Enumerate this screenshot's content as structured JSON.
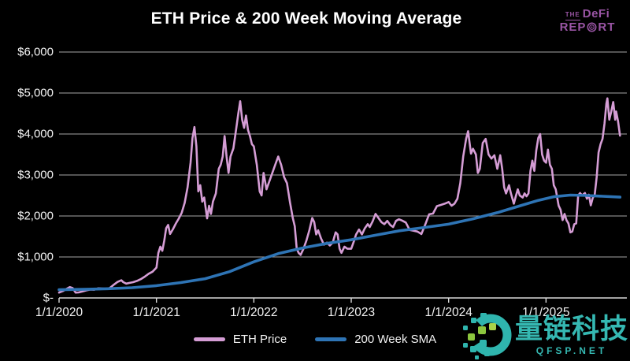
{
  "colors": {
    "background": "#000000",
    "text": "#ffffff",
    "gridline": "#a6a6a6",
    "axis": "#d9d9d9",
    "eth_pink": "#d59dd5",
    "sma_blue": "#2e74b5",
    "logo_purple": "#9a55a5",
    "watermark_teal": "#35b8b2",
    "watermark_green": "#8cc63e"
  },
  "logo": {
    "the": "THE",
    "defi": "DeFi",
    "rep": "REP",
    "rt": "RT"
  },
  "watermark": {
    "text": "量链科技",
    "subtext": "QFSP.NET"
  },
  "chart_data": {
    "type": "line",
    "title": "ETH Price & 200 Week Moving Average",
    "xlabel": "",
    "ylabel": "",
    "grid": "horizontal",
    "legend_position": "bottom",
    "x_axis": {
      "range": [
        2020.0,
        2025.83
      ],
      "ticks": [
        {
          "t": 2020,
          "label": "1/1/2020"
        },
        {
          "t": 2021,
          "label": "1/1/2021"
        },
        {
          "t": 2022,
          "label": "1/1/2022"
        },
        {
          "t": 2023,
          "label": "1/1/2023"
        },
        {
          "t": 2024,
          "label": "1/1/2024"
        },
        {
          "t": 2025,
          "label": "1/1/2025"
        }
      ]
    },
    "y_axis": {
      "range": [
        0,
        6000
      ],
      "ticks": [
        {
          "value": 6000,
          "label": "$6,000"
        },
        {
          "value": 5000,
          "label": "$5,000"
        },
        {
          "value": 4000,
          "label": "$4,000"
        },
        {
          "value": 3000,
          "label": "$3,000"
        },
        {
          "value": 2000,
          "label": "$2,000"
        },
        {
          "value": 1000,
          "label": "$1,000"
        },
        {
          "value": 0,
          "label": "$-"
        }
      ]
    },
    "series": [
      {
        "name": "ETH Price",
        "color": "#d59dd5",
        "stroke_width": 2.6,
        "points": [
          [
            2020.0,
            130
          ],
          [
            2020.04,
            170
          ],
          [
            2020.08,
            225
          ],
          [
            2020.11,
            265
          ],
          [
            2020.14,
            240
          ],
          [
            2020.17,
            130
          ],
          [
            2020.2,
            135
          ],
          [
            2020.24,
            160
          ],
          [
            2020.28,
            185
          ],
          [
            2020.32,
            205
          ],
          [
            2020.36,
            200
          ],
          [
            2020.4,
            235
          ],
          [
            2020.44,
            230
          ],
          [
            2020.48,
            225
          ],
          [
            2020.52,
            240
          ],
          [
            2020.56,
            320
          ],
          [
            2020.6,
            390
          ],
          [
            2020.64,
            430
          ],
          [
            2020.66,
            385
          ],
          [
            2020.69,
            350
          ],
          [
            2020.72,
            365
          ],
          [
            2020.76,
            385
          ],
          [
            2020.8,
            415
          ],
          [
            2020.84,
            460
          ],
          [
            2020.88,
            520
          ],
          [
            2020.92,
            590
          ],
          [
            2020.96,
            640
          ],
          [
            2021.0,
            740
          ],
          [
            2021.02,
            1100
          ],
          [
            2021.04,
            1250
          ],
          [
            2021.06,
            1150
          ],
          [
            2021.08,
            1400
          ],
          [
            2021.1,
            1700
          ],
          [
            2021.12,
            1780
          ],
          [
            2021.14,
            1560
          ],
          [
            2021.17,
            1680
          ],
          [
            2021.2,
            1820
          ],
          [
            2021.23,
            1940
          ],
          [
            2021.26,
            2080
          ],
          [
            2021.29,
            2320
          ],
          [
            2021.32,
            2700
          ],
          [
            2021.35,
            3300
          ],
          [
            2021.37,
            3900
          ],
          [
            2021.39,
            4170
          ],
          [
            2021.41,
            3700
          ],
          [
            2021.43,
            2600
          ],
          [
            2021.45,
            2750
          ],
          [
            2021.47,
            2350
          ],
          [
            2021.49,
            2450
          ],
          [
            2021.52,
            1940
          ],
          [
            2021.54,
            2250
          ],
          [
            2021.56,
            2050
          ],
          [
            2021.58,
            2350
          ],
          [
            2021.61,
            2550
          ],
          [
            2021.64,
            3150
          ],
          [
            2021.66,
            3250
          ],
          [
            2021.68,
            3450
          ],
          [
            2021.7,
            3950
          ],
          [
            2021.72,
            3450
          ],
          [
            2021.74,
            3050
          ],
          [
            2021.76,
            3450
          ],
          [
            2021.79,
            3650
          ],
          [
            2021.82,
            4150
          ],
          [
            2021.84,
            4500
          ],
          [
            2021.86,
            4800
          ],
          [
            2021.88,
            4350
          ],
          [
            2021.9,
            4150
          ],
          [
            2021.92,
            4450
          ],
          [
            2021.94,
            4100
          ],
          [
            2021.96,
            3950
          ],
          [
            2021.98,
            3750
          ],
          [
            2022.0,
            3700
          ],
          [
            2022.03,
            3250
          ],
          [
            2022.06,
            2600
          ],
          [
            2022.08,
            2500
          ],
          [
            2022.1,
            3050
          ],
          [
            2022.13,
            2650
          ],
          [
            2022.16,
            2850
          ],
          [
            2022.19,
            3050
          ],
          [
            2022.22,
            3250
          ],
          [
            2022.25,
            3450
          ],
          [
            2022.28,
            3250
          ],
          [
            2022.31,
            2950
          ],
          [
            2022.34,
            2800
          ],
          [
            2022.37,
            2350
          ],
          [
            2022.4,
            1950
          ],
          [
            2022.42,
            1750
          ],
          [
            2022.44,
            1200
          ],
          [
            2022.46,
            1100
          ],
          [
            2022.48,
            1050
          ],
          [
            2022.51,
            1200
          ],
          [
            2022.54,
            1400
          ],
          [
            2022.57,
            1650
          ],
          [
            2022.6,
            1950
          ],
          [
            2022.62,
            1850
          ],
          [
            2022.64,
            1550
          ],
          [
            2022.66,
            1650
          ],
          [
            2022.69,
            1450
          ],
          [
            2022.72,
            1300
          ],
          [
            2022.75,
            1350
          ],
          [
            2022.78,
            1280
          ],
          [
            2022.81,
            1350
          ],
          [
            2022.84,
            1600
          ],
          [
            2022.86,
            1550
          ],
          [
            2022.88,
            1200
          ],
          [
            2022.9,
            1100
          ],
          [
            2022.93,
            1250
          ],
          [
            2022.96,
            1200
          ],
          [
            2023.0,
            1200
          ],
          [
            2023.03,
            1400
          ],
          [
            2023.05,
            1550
          ],
          [
            2023.08,
            1670
          ],
          [
            2023.11,
            1550
          ],
          [
            2023.14,
            1700
          ],
          [
            2023.17,
            1800
          ],
          [
            2023.19,
            1730
          ],
          [
            2023.22,
            1870
          ],
          [
            2023.25,
            2050
          ],
          [
            2023.28,
            1950
          ],
          [
            2023.31,
            1850
          ],
          [
            2023.34,
            1800
          ],
          [
            2023.37,
            1880
          ],
          [
            2023.4,
            1780
          ],
          [
            2023.43,
            1730
          ],
          [
            2023.46,
            1880
          ],
          [
            2023.49,
            1920
          ],
          [
            2023.52,
            1890
          ],
          [
            2023.56,
            1840
          ],
          [
            2023.6,
            1660
          ],
          [
            2023.64,
            1640
          ],
          [
            2023.68,
            1620
          ],
          [
            2023.72,
            1560
          ],
          [
            2023.76,
            1790
          ],
          [
            2023.8,
            2040
          ],
          [
            2023.84,
            2060
          ],
          [
            2023.88,
            2240
          ],
          [
            2023.92,
            2270
          ],
          [
            2023.96,
            2300
          ],
          [
            2024.0,
            2340
          ],
          [
            2024.03,
            2250
          ],
          [
            2024.06,
            2300
          ],
          [
            2024.09,
            2420
          ],
          [
            2024.12,
            2800
          ],
          [
            2024.15,
            3450
          ],
          [
            2024.18,
            3880
          ],
          [
            2024.2,
            4070
          ],
          [
            2024.23,
            3520
          ],
          [
            2024.25,
            3640
          ],
          [
            2024.28,
            3500
          ],
          [
            2024.3,
            3050
          ],
          [
            2024.32,
            3150
          ],
          [
            2024.35,
            3780
          ],
          [
            2024.38,
            3880
          ],
          [
            2024.41,
            3500
          ],
          [
            2024.44,
            3400
          ],
          [
            2024.47,
            3480
          ],
          [
            2024.5,
            3150
          ],
          [
            2024.53,
            3480
          ],
          [
            2024.55,
            3150
          ],
          [
            2024.57,
            2700
          ],
          [
            2024.59,
            2550
          ],
          [
            2024.62,
            2750
          ],
          [
            2024.64,
            2550
          ],
          [
            2024.67,
            2300
          ],
          [
            2024.69,
            2480
          ],
          [
            2024.71,
            2650
          ],
          [
            2024.73,
            2500
          ],
          [
            2024.76,
            2450
          ],
          [
            2024.78,
            2550
          ],
          [
            2024.8,
            2480
          ],
          [
            2024.82,
            2550
          ],
          [
            2024.84,
            3100
          ],
          [
            2024.86,
            3350
          ],
          [
            2024.88,
            3100
          ],
          [
            2024.9,
            3600
          ],
          [
            2024.92,
            3900
          ],
          [
            2024.94,
            4000
          ],
          [
            2024.96,
            3500
          ],
          [
            2024.98,
            3350
          ],
          [
            2025.0,
            3300
          ],
          [
            2025.02,
            3620
          ],
          [
            2025.04,
            3250
          ],
          [
            2025.06,
            3150
          ],
          [
            2025.08,
            2750
          ],
          [
            2025.1,
            2650
          ],
          [
            2025.13,
            2250
          ],
          [
            2025.15,
            2150
          ],
          [
            2025.17,
            1900
          ],
          [
            2025.19,
            2050
          ],
          [
            2025.21,
            1900
          ],
          [
            2025.23,
            1820
          ],
          [
            2025.25,
            1600
          ],
          [
            2025.27,
            1620
          ],
          [
            2025.29,
            1800
          ],
          [
            2025.31,
            1820
          ],
          [
            2025.33,
            2500
          ],
          [
            2025.35,
            2560
          ],
          [
            2025.37,
            2500
          ],
          [
            2025.4,
            2560
          ],
          [
            2025.42,
            2420
          ],
          [
            2025.44,
            2520
          ],
          [
            2025.46,
            2260
          ],
          [
            2025.48,
            2440
          ],
          [
            2025.5,
            2520
          ],
          [
            2025.52,
            2950
          ],
          [
            2025.54,
            3550
          ],
          [
            2025.56,
            3750
          ],
          [
            2025.58,
            3880
          ],
          [
            2025.6,
            4250
          ],
          [
            2025.62,
            4740
          ],
          [
            2025.63,
            4870
          ],
          [
            2025.65,
            4350
          ],
          [
            2025.67,
            4550
          ],
          [
            2025.69,
            4780
          ],
          [
            2025.71,
            4350
          ],
          [
            2025.72,
            4550
          ],
          [
            2025.74,
            4300
          ],
          [
            2025.76,
            3960
          ]
        ]
      },
      {
        "name": "200 Week SMA",
        "color": "#2e74b5",
        "stroke_width": 3.6,
        "points": [
          [
            2020.0,
            200
          ],
          [
            2020.25,
            210
          ],
          [
            2020.5,
            225
          ],
          [
            2020.75,
            250
          ],
          [
            2021.0,
            300
          ],
          [
            2021.25,
            375
          ],
          [
            2021.5,
            470
          ],
          [
            2021.75,
            640
          ],
          [
            2022.0,
            880
          ],
          [
            2022.25,
            1080
          ],
          [
            2022.5,
            1220
          ],
          [
            2022.75,
            1330
          ],
          [
            2023.0,
            1420
          ],
          [
            2023.25,
            1530
          ],
          [
            2023.5,
            1640
          ],
          [
            2023.75,
            1720
          ],
          [
            2024.0,
            1800
          ],
          [
            2024.25,
            1930
          ],
          [
            2024.5,
            2080
          ],
          [
            2024.75,
            2260
          ],
          [
            2024.92,
            2380
          ],
          [
            2025.08,
            2470
          ],
          [
            2025.25,
            2510
          ],
          [
            2025.42,
            2500
          ],
          [
            2025.58,
            2480
          ],
          [
            2025.76,
            2460
          ]
        ]
      }
    ]
  }
}
